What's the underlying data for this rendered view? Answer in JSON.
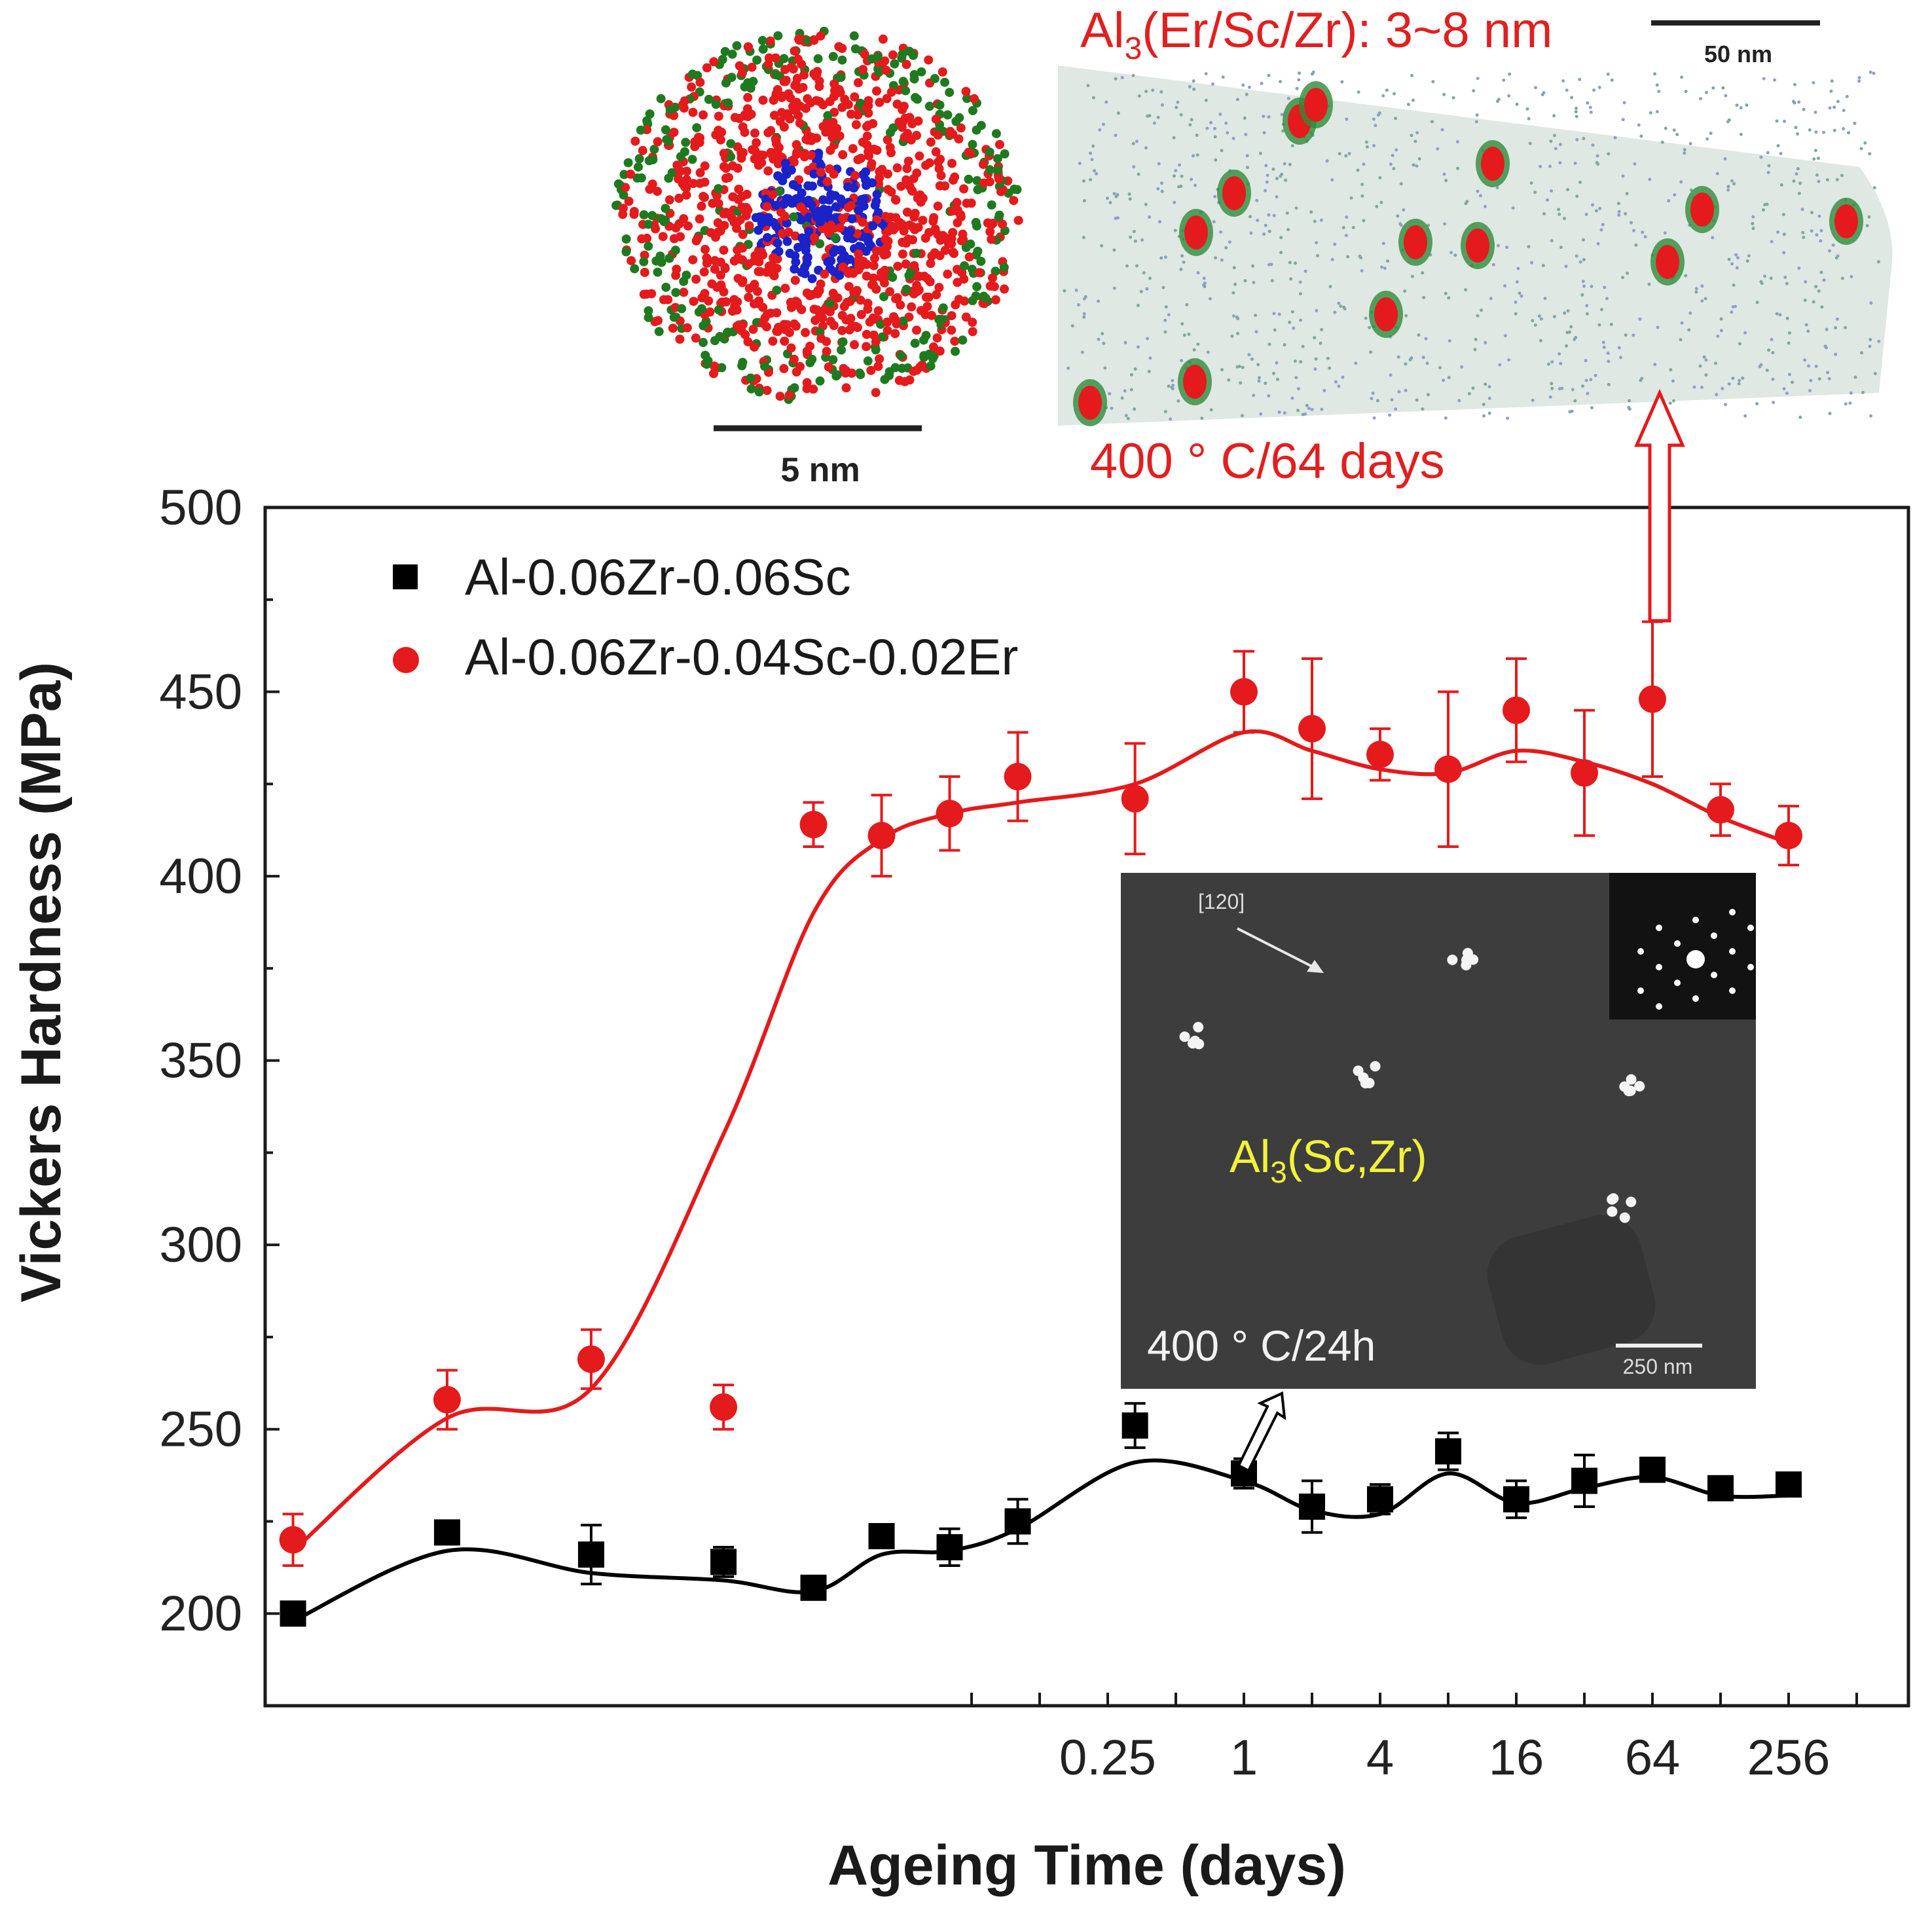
{
  "chart_data": {
    "type": "scatter",
    "title": "",
    "xlabel": "Ageing Time (days)",
    "ylabel": "Vickers Hardness (MPa)",
    "ylim": [
      175,
      500
    ],
    "yticks": [
      200,
      250,
      300,
      350,
      400,
      450,
      500
    ],
    "x_scale": "log2",
    "x_tick_labels": [
      "0.25",
      "1",
      "4",
      "16",
      "64",
      "256"
    ],
    "x_tick_values": [
      0.25,
      1,
      4,
      16,
      64,
      256
    ],
    "grid": false,
    "legend_position": "top-left",
    "x": [
      6.25e-05,
      0.0003,
      0.0013,
      0.005,
      0.0125,
      0.025,
      0.05,
      0.1,
      0.33,
      1,
      2,
      4,
      8,
      16,
      32,
      64,
      128,
      256
    ],
    "series": [
      {
        "name": "Al-0.06Zr-0.06Sc",
        "marker": "square",
        "color": "#000000",
        "values": [
          200,
          222,
          216,
          214,
          207,
          221,
          218,
          225,
          251,
          238,
          229,
          231,
          244,
          231,
          236,
          239,
          234,
          235
        ],
        "errors": [
          3,
          2,
          8,
          4,
          2,
          3,
          5,
          6,
          6,
          4,
          7,
          4,
          5,
          5,
          7,
          3,
          3,
          3
        ],
        "fit": [
          198,
          217,
          211,
          209,
          206,
          216,
          217,
          223,
          241,
          236,
          228,
          227,
          238,
          230,
          234,
          237,
          232,
          232
        ]
      },
      {
        "name": "Al-0.06Zr-0.04Sc-0.02Er",
        "marker": "circle",
        "color": "#e41a1c",
        "values": [
          220,
          258,
          269,
          256,
          414,
          411,
          417,
          427,
          421,
          450,
          440,
          433,
          429,
          445,
          428,
          448,
          418,
          411
        ],
        "errors": [
          7,
          8,
          8,
          6,
          6,
          11,
          10,
          12,
          15,
          11,
          19,
          7,
          21,
          14,
          17,
          21,
          7,
          8
        ],
        "fit": [
          217,
          253,
          261,
          330,
          390,
          410,
          417,
          420,
          425,
          439,
          434,
          429,
          428,
          434,
          431,
          425,
          416,
          409
        ]
      }
    ],
    "annotations": {
      "apt_label": "Al3(Er/Sc/Zr): 3~8 nm",
      "apt_label_main": "Al",
      "apt_label_sub": "3",
      "apt_label_rest": "(Er/Sc/Zr):  3~8 nm",
      "apt_scale": "50 nm",
      "apt_condition": "400 ° C/64 days",
      "cluster_scale": "5 nm",
      "tem_phase_main": "Al",
      "tem_phase_sub": "3",
      "tem_phase_rest": "(Sc,Zr)",
      "tem_condition": "400 ° C/24h",
      "tem_direction": "[120]",
      "tem_scale": "250 nm"
    }
  },
  "colors": {
    "red": "#e41a1c",
    "black": "#000000",
    "tem_background": "#3d3d3d",
    "apt_background": "#dfe8e3"
  }
}
